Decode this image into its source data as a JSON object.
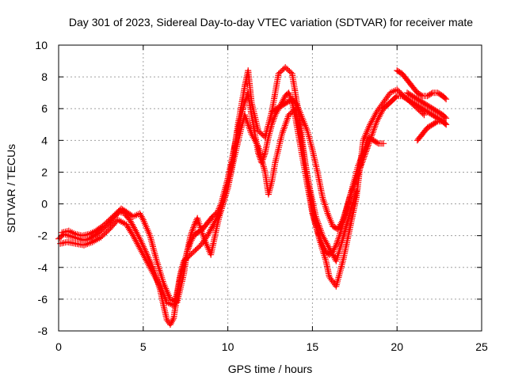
{
  "chart_data": {
    "type": "scatter",
    "title": "Day 301 of 2023, Sidereal Day-to-day VTEC variation (SDTVAR) for receiver mate",
    "xlabel": "GPS time / hours",
    "ylabel": "SDTVAR / TECUs",
    "xlim": [
      0,
      25
    ],
    "ylim": [
      -8,
      10
    ],
    "xticks": [
      "0",
      "5",
      "10",
      "15",
      "20",
      "25"
    ],
    "yticks": [
      "-8",
      "-6",
      "-4",
      "-2",
      "0",
      "2",
      "4",
      "6",
      "8",
      "10"
    ],
    "grid": true,
    "marker": "plus",
    "color": "#ff0000",
    "series": [
      {
        "points": [
          [
            0.0,
            -2.2
          ],
          [
            0.3,
            -1.9
          ],
          [
            0.6,
            -2.0
          ],
          [
            0.9,
            -2.1
          ],
          [
            1.2,
            -2.2
          ],
          [
            1.5,
            -2.3
          ],
          [
            1.8,
            -2.2
          ],
          [
            2.1,
            -2.0
          ],
          [
            2.4,
            -1.8
          ],
          [
            2.7,
            -1.5
          ],
          [
            3.0,
            -1.2
          ],
          [
            3.3,
            -0.8
          ],
          [
            3.6,
            -0.5
          ],
          [
            3.9,
            -0.6
          ],
          [
            4.2,
            -1.0
          ],
          [
            4.5,
            -1.6
          ],
          [
            4.8,
            -2.2
          ],
          [
            5.1,
            -2.9
          ],
          [
            5.4,
            -3.6
          ],
          [
            5.7,
            -4.4
          ],
          [
            6.0,
            -5.4
          ],
          [
            6.2,
            -6.4
          ],
          [
            6.4,
            -7.3
          ],
          [
            6.6,
            -7.6
          ],
          [
            6.8,
            -7.2
          ],
          [
            7.0,
            -5.8
          ],
          [
            7.2,
            -4.6
          ],
          [
            7.4,
            -3.8
          ],
          [
            7.6,
            -3.0
          ],
          [
            7.8,
            -2.4
          ],
          [
            8.0,
            -2.0
          ],
          [
            8.2,
            -1.8
          ],
          [
            8.5,
            -1.6
          ],
          [
            8.8,
            -1.2
          ],
          [
            9.1,
            -0.8
          ],
          [
            9.4,
            -0.5
          ],
          [
            9.6,
            0.0
          ],
          [
            9.8,
            0.8
          ],
          [
            10.0,
            1.6
          ],
          [
            10.2,
            2.6
          ],
          [
            10.4,
            3.6
          ],
          [
            10.6,
            4.6
          ],
          [
            10.8,
            5.6
          ],
          [
            11.0,
            6.4
          ],
          [
            11.2,
            7.0
          ],
          [
            11.4,
            5.6
          ],
          [
            11.6,
            4.4
          ],
          [
            11.8,
            3.2
          ],
          [
            12.0,
            2.6
          ],
          [
            12.2,
            3.2
          ],
          [
            12.4,
            4.2
          ],
          [
            12.6,
            5.0
          ],
          [
            12.8,
            5.6
          ],
          [
            13.0,
            6.0
          ],
          [
            13.2,
            6.4
          ],
          [
            13.4,
            6.8
          ],
          [
            13.6,
            7.0
          ],
          [
            13.8,
            6.4
          ],
          [
            14.0,
            5.4
          ],
          [
            14.2,
            4.2
          ],
          [
            14.4,
            3.0
          ],
          [
            14.6,
            1.8
          ],
          [
            14.8,
            0.6
          ],
          [
            15.0,
            -0.6
          ],
          [
            15.2,
            -1.4
          ],
          [
            15.4,
            -2.0
          ],
          [
            15.6,
            -2.6
          ],
          [
            15.8,
            -3.0
          ],
          [
            16.0,
            -3.2
          ],
          [
            16.2,
            -3.0
          ],
          [
            16.4,
            -2.6
          ],
          [
            16.6,
            -2.0
          ],
          [
            16.8,
            -1.2
          ],
          [
            17.0,
            -0.4
          ],
          [
            17.2,
            0.4
          ],
          [
            17.4,
            1.0
          ],
          [
            17.6,
            1.6
          ],
          [
            17.8,
            2.2
          ],
          [
            18.0,
            2.8
          ],
          [
            18.2,
            3.4
          ],
          [
            18.4,
            4.0
          ],
          [
            18.6,
            4.6
          ],
          [
            18.8,
            5.2
          ],
          [
            19.0,
            5.6
          ],
          [
            19.2,
            6.0
          ],
          [
            19.4,
            6.2
          ],
          [
            19.6,
            6.4
          ],
          [
            19.8,
            6.6
          ],
          [
            20.0,
            6.8
          ],
          [
            20.3,
            6.8
          ],
          [
            20.6,
            6.6
          ],
          [
            20.9,
            6.4
          ],
          [
            21.2,
            6.2
          ],
          [
            21.5,
            6.0
          ],
          [
            21.8,
            5.8
          ],
          [
            22.1,
            5.6
          ],
          [
            22.4,
            5.4
          ],
          [
            22.7,
            5.2
          ],
          [
            22.9,
            5.0
          ]
        ]
      },
      {
        "points": [
          [
            0.1,
            -2.5
          ],
          [
            0.5,
            -2.4
          ],
          [
            1.0,
            -2.5
          ],
          [
            1.5,
            -2.6
          ],
          [
            2.0,
            -2.4
          ],
          [
            2.5,
            -2.1
          ],
          [
            3.0,
            -1.6
          ],
          [
            3.5,
            -1.0
          ],
          [
            4.0,
            -1.3
          ],
          [
            4.4,
            -2.0
          ],
          [
            4.8,
            -2.8
          ],
          [
            5.2,
            -3.6
          ],
          [
            5.6,
            -4.4
          ],
          [
            6.0,
            -5.2
          ],
          [
            6.4,
            -6.2
          ],
          [
            6.8,
            -6.4
          ],
          [
            7.0,
            -5.6
          ],
          [
            7.2,
            -4.4
          ],
          [
            7.4,
            -3.6
          ],
          [
            7.6,
            -3.4
          ],
          [
            8.0,
            -3.0
          ],
          [
            8.4,
            -2.6
          ],
          [
            8.8,
            -2.0
          ],
          [
            9.2,
            -1.2
          ],
          [
            9.6,
            -0.4
          ],
          [
            10.0,
            1.0
          ],
          [
            10.4,
            3.0
          ],
          [
            10.8,
            4.8
          ],
          [
            11.0,
            5.6
          ],
          [
            11.4,
            4.4
          ],
          [
            11.8,
            3.6
          ],
          [
            12.2,
            2.0
          ],
          [
            12.4,
            0.6
          ],
          [
            12.6,
            1.4
          ],
          [
            12.8,
            2.6
          ],
          [
            13.2,
            4.4
          ],
          [
            13.6,
            5.6
          ],
          [
            14.0,
            6.0
          ],
          [
            14.4,
            3.6
          ],
          [
            14.8,
            1.2
          ],
          [
            15.2,
            -0.8
          ],
          [
            15.6,
            -2.0
          ],
          [
            16.0,
            -2.8
          ],
          [
            16.4,
            -3.6
          ],
          [
            16.8,
            -2.2
          ],
          [
            17.2,
            -0.6
          ],
          [
            17.6,
            0.8
          ]
        ]
      },
      {
        "points": [
          [
            0.2,
            -1.8
          ],
          [
            0.6,
            -1.7
          ],
          [
            1.0,
            -1.9
          ],
          [
            1.4,
            -2.0
          ],
          [
            1.8,
            -1.9
          ],
          [
            2.2,
            -1.7
          ],
          [
            2.6,
            -1.4
          ],
          [
            3.0,
            -1.0
          ],
          [
            3.4,
            -0.6
          ],
          [
            3.7,
            -0.3
          ],
          [
            4.0,
            -0.5
          ],
          [
            4.4,
            -0.8
          ],
          [
            4.8,
            -0.6
          ],
          [
            5.0,
            -1.0
          ],
          [
            5.4,
            -2.0
          ],
          [
            5.8,
            -3.6
          ],
          [
            6.2,
            -5.0
          ],
          [
            6.6,
            -6.0
          ],
          [
            7.0,
            -6.2
          ],
          [
            7.4,
            -4.4
          ],
          [
            7.6,
            -3.0
          ],
          [
            7.8,
            -2.0
          ],
          [
            8.0,
            -1.4
          ],
          [
            8.2,
            -0.9
          ],
          [
            8.6,
            -2.2
          ],
          [
            9.0,
            -3.2
          ],
          [
            9.4,
            -1.2
          ],
          [
            9.8,
            0.4
          ],
          [
            10.2,
            2.2
          ],
          [
            10.6,
            5.0
          ],
          [
            11.0,
            7.4
          ],
          [
            11.2,
            8.4
          ],
          [
            11.4,
            6.4
          ],
          [
            11.8,
            4.6
          ],
          [
            12.2,
            4.2
          ],
          [
            12.6,
            5.8
          ],
          [
            13.0,
            8.2
          ],
          [
            13.4,
            8.6
          ],
          [
            13.8,
            8.2
          ],
          [
            14.2,
            5.6
          ],
          [
            14.6,
            2.4
          ],
          [
            15.0,
            -0.4
          ],
          [
            15.4,
            -2.2
          ],
          [
            15.8,
            -3.6
          ],
          [
            16.0,
            -4.6
          ],
          [
            16.4,
            -5.2
          ],
          [
            16.8,
            -3.6
          ],
          [
            17.2,
            -1.6
          ],
          [
            17.6,
            0.4
          ],
          [
            18.0,
            4.0
          ],
          [
            18.4,
            5.0
          ],
          [
            18.8,
            5.8
          ],
          [
            19.2,
            6.4
          ],
          [
            19.6,
            7.0
          ],
          [
            20.0,
            7.2
          ],
          [
            20.4,
            6.8
          ],
          [
            20.8,
            6.4
          ],
          [
            21.2,
            6.0
          ],
          [
            21.6,
            5.6
          ]
        ]
      },
      {
        "points": [
          [
            12.6,
            5.8
          ],
          [
            12.9,
            6.0
          ],
          [
            13.2,
            6.2
          ],
          [
            13.5,
            6.4
          ],
          [
            13.8,
            6.6
          ],
          [
            14.1,
            6.2
          ],
          [
            14.4,
            5.4
          ],
          [
            14.7,
            4.6
          ],
          [
            15.0,
            3.4
          ],
          [
            15.3,
            2.0
          ],
          [
            15.6,
            0.4
          ],
          [
            15.9,
            -0.6
          ],
          [
            16.2,
            -1.4
          ],
          [
            16.5,
            -1.6
          ],
          [
            16.8,
            -1.0
          ],
          [
            17.1,
            0.0
          ],
          [
            17.4,
            1.2
          ],
          [
            17.7,
            2.4
          ],
          [
            18.0,
            3.2
          ],
          [
            18.3,
            4.2
          ],
          [
            18.6,
            4.0
          ],
          [
            18.9,
            3.8
          ],
          [
            19.2,
            3.8
          ]
        ]
      },
      {
        "points": [
          [
            20.0,
            8.4
          ],
          [
            20.3,
            8.2
          ],
          [
            20.6,
            7.8
          ],
          [
            20.9,
            7.4
          ],
          [
            21.2,
            7.0
          ],
          [
            21.5,
            6.8
          ],
          [
            21.8,
            6.8
          ],
          [
            22.1,
            7.0
          ],
          [
            22.4,
            7.0
          ],
          [
            22.7,
            6.8
          ],
          [
            22.9,
            6.6
          ]
        ]
      },
      {
        "points": [
          [
            20.6,
            7.0
          ],
          [
            20.9,
            6.8
          ],
          [
            21.2,
            6.6
          ],
          [
            21.5,
            6.4
          ],
          [
            21.8,
            6.2
          ],
          [
            22.1,
            6.0
          ],
          [
            22.4,
            5.8
          ],
          [
            22.7,
            5.6
          ],
          [
            22.9,
            5.4
          ]
        ]
      },
      {
        "points": [
          [
            21.2,
            4.0
          ],
          [
            21.5,
            4.4
          ],
          [
            21.8,
            4.8
          ],
          [
            22.1,
            5.0
          ],
          [
            22.4,
            5.2
          ],
          [
            22.7,
            5.2
          ],
          [
            22.9,
            5.0
          ]
        ]
      }
    ]
  }
}
